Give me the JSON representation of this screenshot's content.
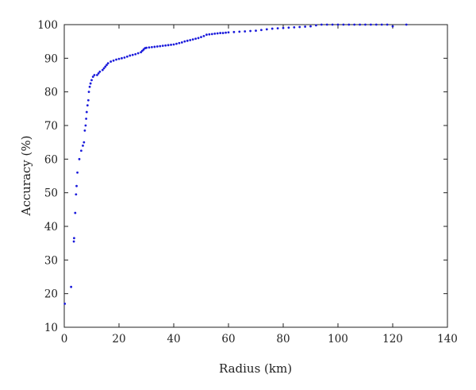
{
  "chart_data": {
    "type": "scatter",
    "xlabel": "Radius (km)",
    "ylabel": "Accuracy (%)",
    "xlim": [
      0,
      140
    ],
    "ylim": [
      10,
      100
    ],
    "xticks": [
      "0",
      "20",
      "40",
      "60",
      "80",
      "100",
      "120",
      "140"
    ],
    "yticks": [
      "10",
      "20",
      "30",
      "40",
      "50",
      "60",
      "70",
      "80",
      "90",
      "100"
    ],
    "grid": false,
    "marker_color": "#1a1adb",
    "series": [
      {
        "values": [
          [
            0.2,
            17
          ],
          [
            2.5,
            22
          ],
          [
            3.5,
            35.5
          ],
          [
            3.6,
            36.5
          ],
          [
            4.0,
            44
          ],
          [
            4.3,
            49.5
          ],
          [
            4.5,
            52
          ],
          [
            4.8,
            56
          ],
          [
            5.5,
            60
          ],
          [
            6.2,
            62.5
          ],
          [
            6.8,
            64
          ],
          [
            7.2,
            65
          ],
          [
            7.5,
            68.5
          ],
          [
            7.8,
            70
          ],
          [
            8.0,
            72
          ],
          [
            8.2,
            74
          ],
          [
            8.5,
            76
          ],
          [
            8.8,
            77.5
          ],
          [
            9.0,
            80
          ],
          [
            9.3,
            81.5
          ],
          [
            9.6,
            82.5
          ],
          [
            10.0,
            83.5
          ],
          [
            10.5,
            84.5
          ],
          [
            11.0,
            85
          ],
          [
            12.0,
            85
          ],
          [
            12.5,
            85.5
          ],
          [
            13.0,
            86
          ],
          [
            14.0,
            86.5
          ],
          [
            14.5,
            87
          ],
          [
            15.0,
            87.5
          ],
          [
            15.5,
            88
          ],
          [
            16.0,
            88.5
          ],
          [
            17.0,
            89
          ],
          [
            18.0,
            89.3
          ],
          [
            19.0,
            89.6
          ],
          [
            20.0,
            89.8
          ],
          [
            21.0,
            90
          ],
          [
            22.0,
            90.2
          ],
          [
            23.0,
            90.5
          ],
          [
            24.0,
            90.8
          ],
          [
            25.0,
            91
          ],
          [
            26.0,
            91.2
          ],
          [
            27.0,
            91.5
          ],
          [
            28.0,
            91.8
          ],
          [
            28.5,
            92.2
          ],
          [
            29.0,
            92.6
          ],
          [
            29.5,
            93
          ],
          [
            30.0,
            93.1
          ],
          [
            31.0,
            93.2
          ],
          [
            32.0,
            93.3
          ],
          [
            33.0,
            93.4
          ],
          [
            34.0,
            93.5
          ],
          [
            35.0,
            93.6
          ],
          [
            36.0,
            93.7
          ],
          [
            37.0,
            93.8
          ],
          [
            38.0,
            93.9
          ],
          [
            39.0,
            94
          ],
          [
            40.0,
            94.1
          ],
          [
            41.0,
            94.3
          ],
          [
            42.0,
            94.5
          ],
          [
            43.0,
            94.7
          ],
          [
            44.0,
            95
          ],
          [
            45.0,
            95.2
          ],
          [
            46.0,
            95.4
          ],
          [
            47.0,
            95.6
          ],
          [
            48.0,
            95.8
          ],
          [
            49.0,
            96
          ],
          [
            50.0,
            96.3
          ],
          [
            51.0,
            96.6
          ],
          [
            52.0,
            97
          ],
          [
            53.0,
            97.1
          ],
          [
            54.0,
            97.2
          ],
          [
            55.0,
            97.3
          ],
          [
            56.0,
            97.4
          ],
          [
            57.0,
            97.5
          ],
          [
            58.0,
            97.5
          ],
          [
            59.0,
            97.6
          ],
          [
            60.0,
            97.7
          ],
          [
            62.0,
            97.8
          ],
          [
            64.0,
            97.9
          ],
          [
            66.0,
            98
          ],
          [
            68.0,
            98.1
          ],
          [
            70.0,
            98.2
          ],
          [
            72.0,
            98.4
          ],
          [
            74.0,
            98.6
          ],
          [
            76.0,
            98.8
          ],
          [
            78.0,
            98.9
          ],
          [
            80.0,
            99
          ],
          [
            82.0,
            99.1
          ],
          [
            84.0,
            99.2
          ],
          [
            86.0,
            99.3
          ],
          [
            88.0,
            99.4
          ],
          [
            90.0,
            99.5
          ],
          [
            92.0,
            99.8
          ],
          [
            94.0,
            100
          ],
          [
            96.0,
            100
          ],
          [
            98.0,
            100
          ],
          [
            100.0,
            100
          ],
          [
            102.0,
            100
          ],
          [
            104.0,
            100
          ],
          [
            106.0,
            100
          ],
          [
            108.0,
            100
          ],
          [
            110.0,
            100
          ],
          [
            112.0,
            100
          ],
          [
            114.0,
            100
          ],
          [
            116.0,
            100
          ],
          [
            118.0,
            100
          ],
          [
            120.0,
            99.5
          ],
          [
            125.0,
            100
          ]
        ]
      }
    ]
  }
}
